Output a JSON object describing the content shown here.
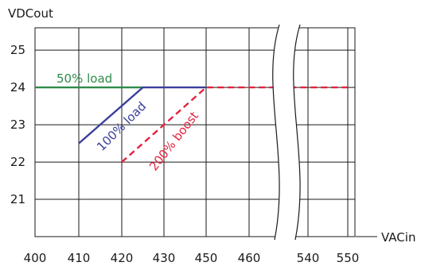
{
  "chart_data": {
    "type": "line",
    "title": "",
    "ylabel": "VDCout",
    "xlabel": "VACin",
    "ylim": [
      20,
      25.6
    ],
    "grid": true,
    "axis_break": {
      "between": [
        460,
        540
      ]
    },
    "x_ticks": [
      "400",
      "410",
      "420",
      "430",
      "450",
      "460",
      "540",
      "550"
    ],
    "y_ticks": [
      "21",
      "22",
      "23",
      "24",
      "25"
    ],
    "series": [
      {
        "name": "50% load",
        "color": "#2e8b4a",
        "style": "solid",
        "points": [
          [
            400,
            24
          ],
          [
            425,
            24
          ]
        ]
      },
      {
        "name": "100% load",
        "color": "#3a3f9a",
        "style": "solid",
        "points": [
          [
            410,
            22.5
          ],
          [
            425,
            24
          ],
          [
            450,
            24
          ]
        ]
      },
      {
        "name": "200% boost",
        "color": "#e2233e",
        "style": "dashed",
        "points": [
          [
            420,
            22
          ],
          [
            450,
            24
          ],
          [
            460,
            24
          ],
          [
            540,
            24
          ],
          [
            550,
            24
          ]
        ]
      }
    ]
  }
}
